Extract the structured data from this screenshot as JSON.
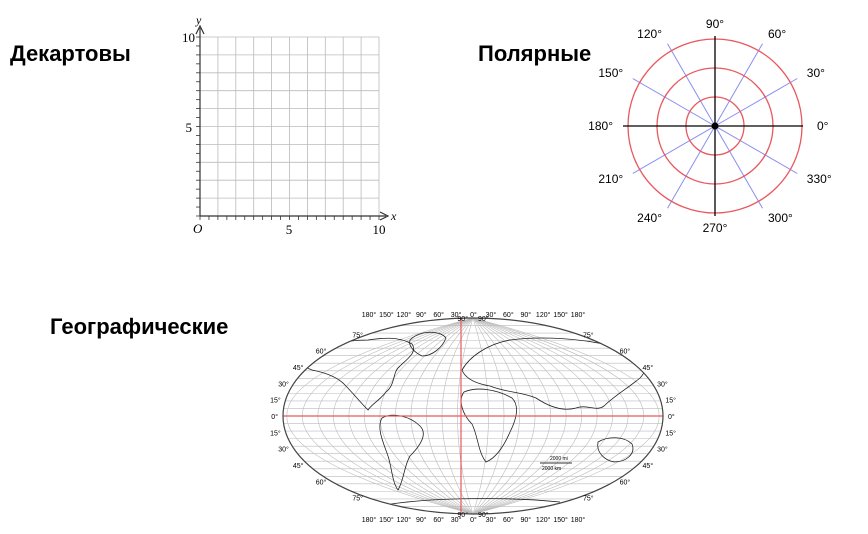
{
  "headings": {
    "cartesian": "Декартовы",
    "polar": "Полярные",
    "geographic": "Географические"
  },
  "cartesian": {
    "x_axis_label": "x",
    "y_axis_label": "y",
    "origin_label": "O",
    "x_ticks": [
      "5",
      "10"
    ],
    "y_ticks": [
      "5",
      "10"
    ],
    "range": [
      0,
      10
    ],
    "grid_step": 1
  },
  "polar": {
    "angle_labels": [
      "0°",
      "30°",
      "60°",
      "90°",
      "120°",
      "150°",
      "180°",
      "210°",
      "240°",
      "270°",
      "300°",
      "330°"
    ],
    "circle_count": 3,
    "colors": {
      "circles": "#e8595f",
      "spokes": "#8a8ef0",
      "axes": "#000000"
    }
  },
  "map": {
    "top_longitudes": [
      "180°",
      "150°",
      "120°",
      "90°",
      "60°",
      "30°",
      "0°",
      "30°",
      "60°",
      "90°",
      "120°",
      "150°",
      "180°"
    ],
    "bottom_longitudes": [
      "180°",
      "150°",
      "120°",
      "90°",
      "60°",
      "30°",
      "0°",
      "30°",
      "60°",
      "90°",
      "120°",
      "150°",
      "180°"
    ],
    "latitude_labels": [
      "90°",
      "75°",
      "60°",
      "45°",
      "30°",
      "15°",
      "0°",
      "15°",
      "30°",
      "45°",
      "60°",
      "75°",
      "90°"
    ],
    "scale_miles": "2000 mi",
    "scale_km": "2000 km",
    "colors": {
      "equator": "#e8595f",
      "prime_meridian": "#e8595f",
      "grid": "#bbbbbb"
    }
  }
}
